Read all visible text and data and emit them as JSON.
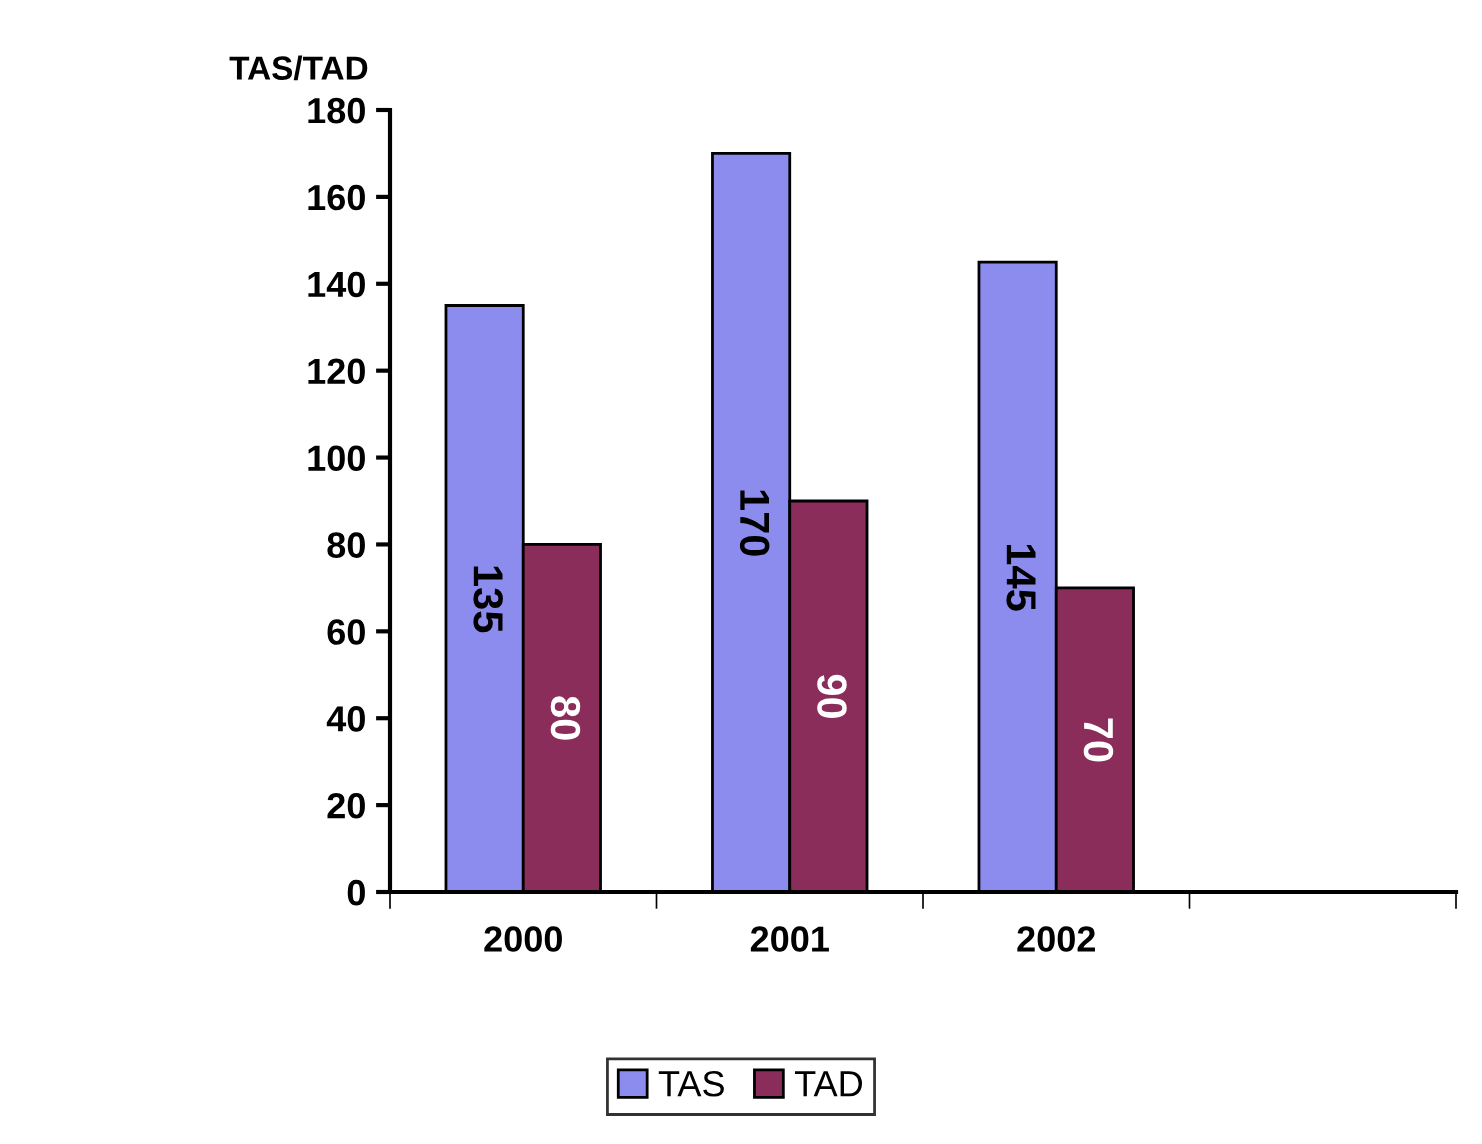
{
  "chart_data": {
    "type": "bar",
    "ylabel": "TAS/TAD",
    "categories": [
      "2000",
      "2001",
      "2002",
      null
    ],
    "series": [
      {
        "name": "TAS",
        "color": "#8c8cee",
        "values": [
          135,
          170,
          145,
          null
        ]
      },
      {
        "name": "TAD",
        "color": "#8a2d5a",
        "values": [
          80,
          90,
          70,
          null
        ]
      }
    ],
    "ylim": [
      0,
      180
    ],
    "yticks": [
      0,
      20,
      40,
      60,
      80,
      100,
      120,
      140,
      160,
      180
    ],
    "data_labels": true,
    "grid": false,
    "legend": "bottom"
  }
}
